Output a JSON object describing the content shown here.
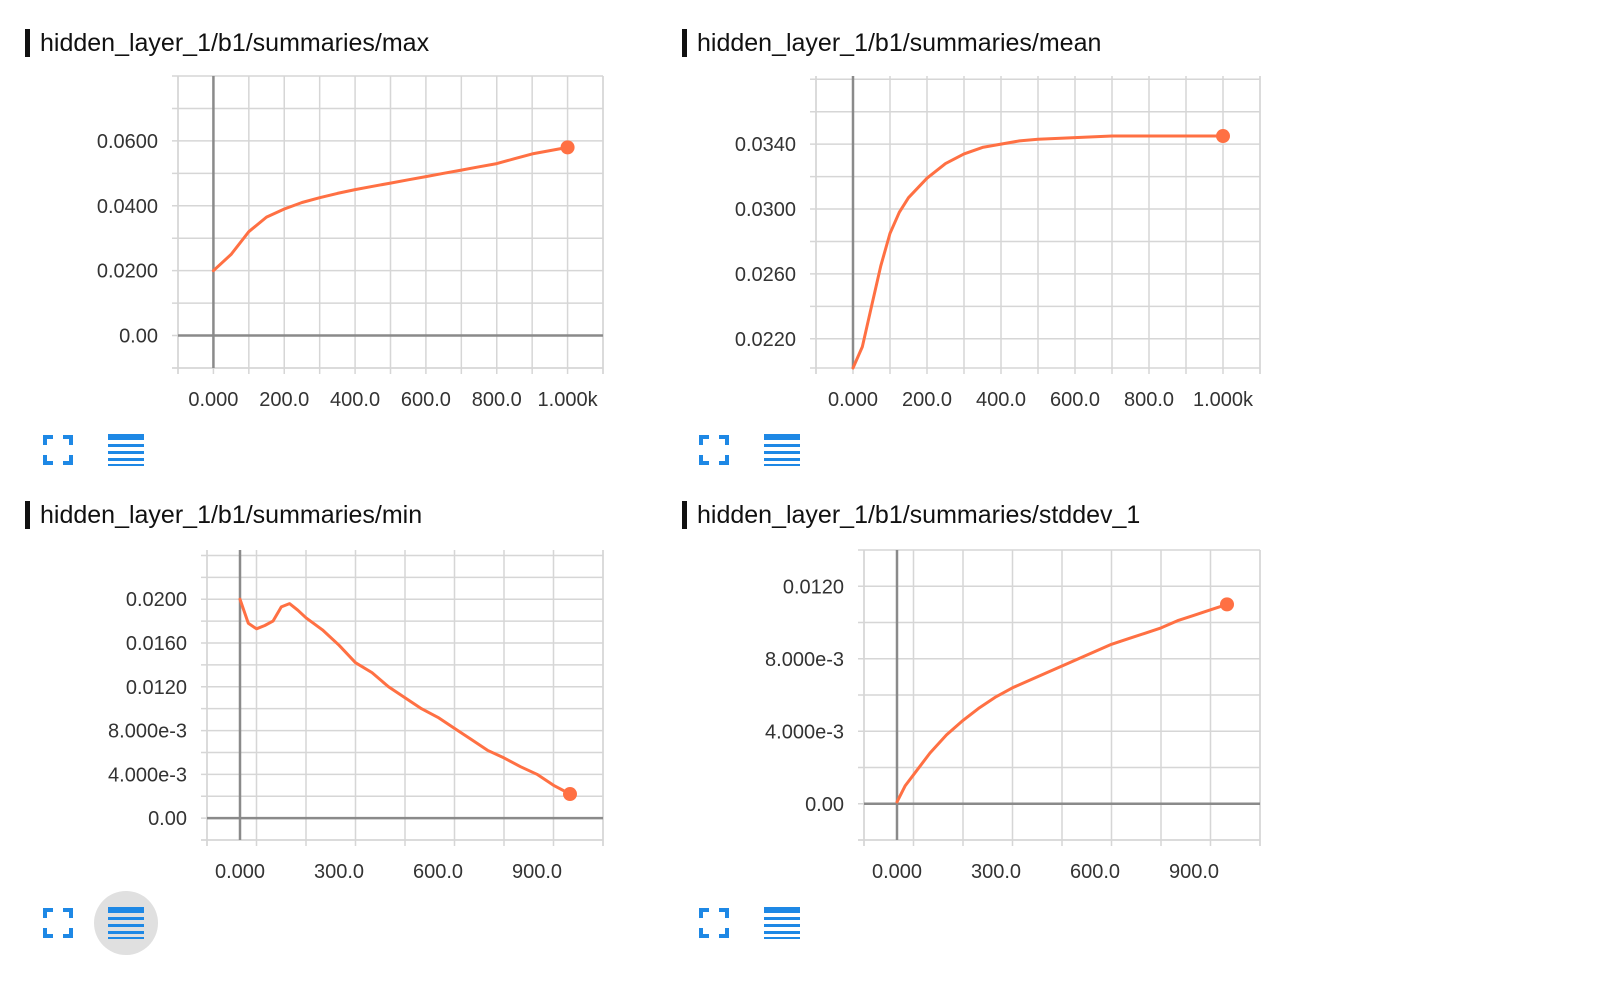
{
  "accent_color": "#ff7043",
  "icon_color": "#1e88e5",
  "cards": [
    {
      "title": "hidden_layer_1/b1/summaries/max",
      "fullscreen_icon": "fullscreen-icon",
      "data_icon": "list-icon",
      "data_button_active": false,
      "chart_data": {
        "type": "line",
        "title": "hidden_layer_1/b1/summaries/max",
        "xlabel": "",
        "ylabel": "",
        "xlim": [
          -100,
          1100
        ],
        "ylim": [
          -0.01,
          0.08
        ],
        "grid": true,
        "x_ticks": [
          0,
          200,
          400,
          600,
          800,
          1000
        ],
        "x_tick_labels": [
          "0.000",
          "200.0",
          "400.0",
          "600.0",
          "800.0",
          "1.000k"
        ],
        "y_ticks": [
          0,
          0.02,
          0.04,
          0.06
        ],
        "y_tick_labels": [
          "0.00",
          "0.0200",
          "0.0400",
          "0.0600"
        ],
        "series": [
          {
            "color": "#ff7043",
            "x": [
              0,
              50,
              100,
              150,
              200,
              250,
              300,
              350,
              400,
              450,
              500,
              550,
              600,
              650,
              700,
              750,
              800,
              850,
              900,
              950,
              1000
            ],
            "y": [
              0.02,
              0.025,
              0.032,
              0.0365,
              0.039,
              0.041,
              0.0425,
              0.0438,
              0.045,
              0.046,
              0.047,
              0.048,
              0.049,
              0.05,
              0.051,
              0.052,
              0.053,
              0.0545,
              0.056,
              0.057,
              0.058
            ]
          }
        ]
      }
    },
    {
      "title": "hidden_layer_1/b1/summaries/mean",
      "fullscreen_icon": "fullscreen-icon",
      "data_icon": "list-icon",
      "data_button_active": false,
      "chart_data": {
        "type": "line",
        "title": "hidden_layer_1/b1/summaries/mean",
        "xlabel": "",
        "ylabel": "",
        "xlim": [
          -100,
          1100
        ],
        "ylim": [
          0.0202,
          0.0382
        ],
        "grid": true,
        "x_ticks": [
          0,
          200,
          400,
          600,
          800,
          1000
        ],
        "x_tick_labels": [
          "0.000",
          "200.0",
          "400.0",
          "600.0",
          "800.0",
          "1.000k"
        ],
        "y_ticks": [
          0.022,
          0.026,
          0.03,
          0.034
        ],
        "y_tick_labels": [
          "0.0220",
          "0.0260",
          "0.0300",
          "0.0340"
        ],
        "series": [
          {
            "color": "#ff7043",
            "x": [
              0,
              25,
              50,
              75,
              100,
              125,
              150,
              200,
              250,
              300,
              350,
              400,
              450,
              500,
              600,
              700,
              800,
              900,
              1000
            ],
            "y": [
              0.0202,
              0.0215,
              0.024,
              0.0265,
              0.0285,
              0.0298,
              0.0307,
              0.0319,
              0.0328,
              0.0334,
              0.0338,
              0.034,
              0.0342,
              0.0343,
              0.0344,
              0.0345,
              0.0345,
              0.0345,
              0.0345
            ]
          }
        ]
      }
    },
    {
      "title": "hidden_layer_1/b1/summaries/min",
      "fullscreen_icon": "fullscreen-icon",
      "data_icon": "list-icon",
      "data_button_active": true,
      "chart_data": {
        "type": "line",
        "title": "hidden_layer_1/b1/summaries/min",
        "xlabel": "",
        "ylabel": "",
        "xlim": [
          -100,
          1100
        ],
        "ylim": [
          -0.002,
          0.0245
        ],
        "grid": true,
        "x_ticks": [
          0,
          300,
          600,
          900
        ],
        "x_tick_labels": [
          "0.000",
          "300.0",
          "600.0",
          "900.0"
        ],
        "y_ticks": [
          0,
          0.004,
          0.008,
          0.012,
          0.016,
          0.02
        ],
        "y_tick_labels": [
          "0.00",
          "4.000e-3",
          "8.000e-3",
          "0.0120",
          "0.0160",
          "0.0200"
        ],
        "series": [
          {
            "color": "#ff7043",
            "x": [
              0,
              25,
              50,
              75,
              100,
              125,
              150,
              175,
              200,
              250,
              300,
              350,
              400,
              450,
              500,
              550,
              600,
              650,
              700,
              750,
              800,
              850,
              900,
              950,
              1000
            ],
            "y": [
              0.02,
              0.0178,
              0.0173,
              0.0176,
              0.018,
              0.0193,
              0.0196,
              0.019,
              0.0183,
              0.0172,
              0.0158,
              0.0142,
              0.0133,
              0.012,
              0.011,
              0.01,
              0.0092,
              0.0082,
              0.0072,
              0.0062,
              0.0055,
              0.0047,
              0.004,
              0.003,
              0.0022
            ]
          }
        ]
      }
    },
    {
      "title": "hidden_layer_1/b1/summaries/stddev_1",
      "fullscreen_icon": "fullscreen-icon",
      "data_icon": "list-icon",
      "data_button_active": false,
      "chart_data": {
        "type": "line",
        "title": "hidden_layer_1/b1/summaries/stddev_1",
        "xlabel": "",
        "ylabel": "",
        "xlim": [
          -100,
          1100
        ],
        "ylim": [
          -0.002,
          0.014
        ],
        "grid": true,
        "x_ticks": [
          0,
          300,
          600,
          900
        ],
        "x_tick_labels": [
          "0.000",
          "300.0",
          "600.0",
          "900.0"
        ],
        "y_ticks": [
          0,
          0.004,
          0.008,
          0.012
        ],
        "y_tick_labels": [
          "0.00",
          "4.000e-3",
          "8.000e-3",
          "0.0120"
        ],
        "series": [
          {
            "color": "#ff7043",
            "x": [
              0,
              25,
              50,
              100,
              150,
              200,
              250,
              300,
              350,
              400,
              450,
              500,
              550,
              600,
              650,
              700,
              750,
              800,
              850,
              900,
              950,
              1000
            ],
            "y": [
              0.0001,
              0.001,
              0.0016,
              0.0028,
              0.0038,
              0.0046,
              0.0053,
              0.0059,
              0.0064,
              0.0068,
              0.0072,
              0.0076,
              0.008,
              0.0084,
              0.0088,
              0.0091,
              0.0094,
              0.0097,
              0.0101,
              0.0104,
              0.0107,
              0.011
            ]
          }
        ]
      }
    }
  ]
}
